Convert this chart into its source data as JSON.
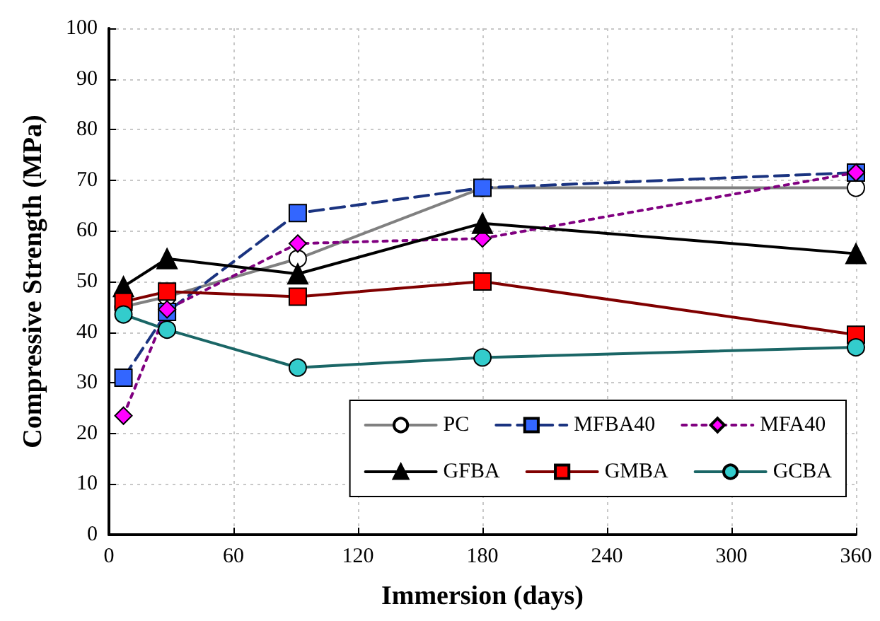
{
  "chart_data": {
    "type": "line",
    "xlabel": "Immersion (days)",
    "ylabel": "Compressive Strength (MPa)",
    "xlim": [
      0,
      360
    ],
    "xticks": [
      0,
      60,
      120,
      180,
      240,
      300,
      360
    ],
    "ylim": [
      0,
      100
    ],
    "yticks": [
      0,
      10,
      20,
      30,
      40,
      50,
      60,
      70,
      80,
      90,
      100
    ],
    "grid": true,
    "legend": "bottom right",
    "series": [
      {
        "name": "PC",
        "color": "#ffffff",
        "marker": "circle",
        "line_style": "solid",
        "x": [
          7,
          28,
          91,
          180,
          360
        ],
        "values": [
          45,
          47,
          54.5,
          68.5,
          68.5
        ]
      },
      {
        "name": "MFBA40",
        "color": "#3366ff",
        "marker": "square",
        "line_style": "dashed",
        "x": [
          7,
          28,
          91,
          180,
          360
        ],
        "values": [
          31,
          44,
          63.5,
          68.5,
          71.5
        ]
      },
      {
        "name": "MFA40",
        "color": "#ff00ff",
        "marker": "diamond",
        "line_style": "dotted",
        "x": [
          7,
          28,
          91,
          180,
          360
        ],
        "values": [
          23.5,
          44.5,
          57.5,
          58.5,
          71.5
        ]
      },
      {
        "name": "GFBA",
        "color": "#000000",
        "marker": "triangle",
        "line_style": "solid",
        "x": [
          7,
          28,
          91,
          180,
          360
        ],
        "values": [
          49,
          54.5,
          51.5,
          61.5,
          55.5
        ]
      },
      {
        "name": "GMBA",
        "color": "#ff0000",
        "marker": "square",
        "line_style": "solid",
        "x": [
          7,
          28,
          91,
          180,
          360
        ],
        "values": [
          46,
          48,
          47,
          50,
          39.5
        ]
      },
      {
        "name": "GCBA",
        "color": "#33cccc",
        "marker": "circle",
        "line_style": "solid",
        "x": [
          7,
          28,
          91,
          180,
          360
        ],
        "values": [
          43.5,
          40.5,
          33,
          35,
          37
        ]
      }
    ]
  }
}
